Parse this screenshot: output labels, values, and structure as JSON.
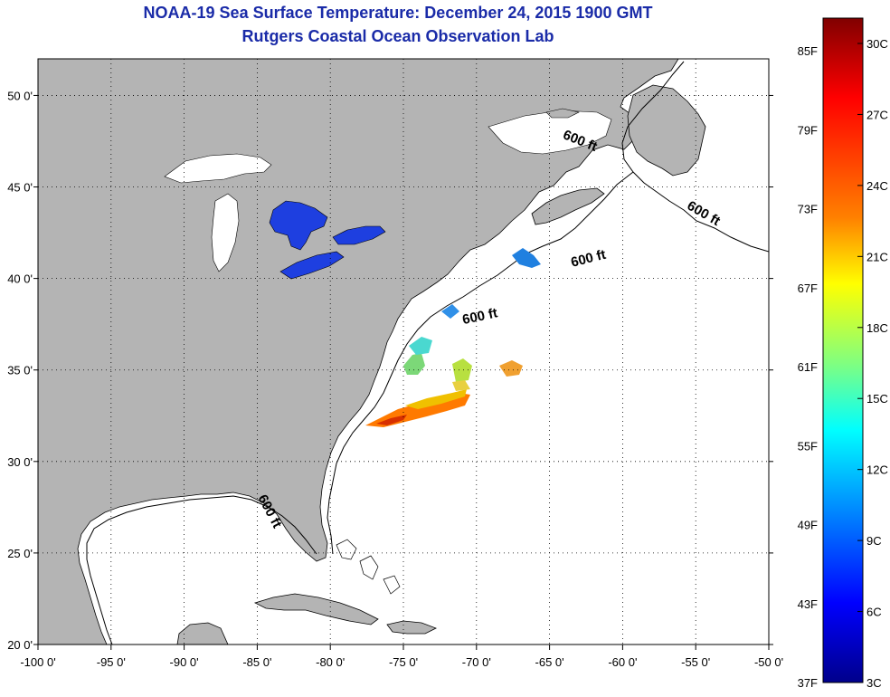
{
  "title": "NOAA-19 Sea Surface Temperature:  December 24, 2015 1900 GMT",
  "subtitle": "Rutgers Coastal Ocean Observation Lab",
  "map": {
    "lon_range": [
      -100,
      -50
    ],
    "lat_range": [
      20,
      52
    ],
    "lon_ticks": [
      "-100 0'",
      "-95 0'",
      "-90 0'",
      "-85 0'",
      "-80 0'",
      "-75 0'",
      "-70 0'",
      "-65 0'",
      "-60 0'",
      "-55 0'",
      "-50 0'"
    ],
    "lon_tick_values": [
      -100,
      -95,
      -90,
      -85,
      -80,
      -75,
      -70,
      -65,
      -60,
      -55,
      -50
    ],
    "lat_ticks": [
      "20 0'",
      "25 0'",
      "30 0'",
      "35 0'",
      "40 0'",
      "45 0'",
      "50 0'"
    ],
    "lat_tick_values": [
      20,
      25,
      30,
      35,
      40,
      45,
      50
    ],
    "grid": "dotted",
    "land_color": "#b4b4b4",
    "ocean_color": "#ffffff",
    "contour_labels": [
      "600 ft",
      "600 ft",
      "600 ft",
      "600 ft",
      "600 ft"
    ]
  },
  "colorbar": {
    "f_labels": [
      "85F",
      "79F",
      "73F",
      "67F",
      "61F",
      "55F",
      "49F",
      "43F",
      "37F"
    ],
    "c_labels": [
      "30C",
      "27C",
      "24C",
      "21C",
      "18C",
      "15C",
      "12C",
      "9C",
      "6C",
      "3C"
    ],
    "colors": [
      "#800000",
      "#ff0000",
      "#ff8000",
      "#ffff00",
      "#80ff80",
      "#00ffff",
      "#0080ff",
      "#0000ff",
      "#00008b"
    ]
  }
}
